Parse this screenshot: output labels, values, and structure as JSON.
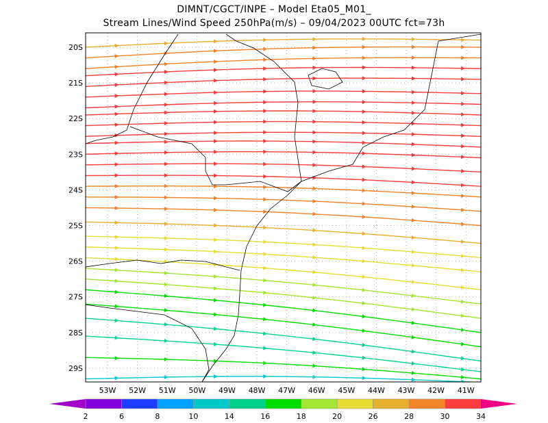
{
  "header": {
    "title_line1": "DIMNT/CGCT/INPE –  Model Eta05_M01_",
    "title_line2": "Stream Lines/Wind Speed 250hPa(m/s) –  09/04/2023 00UTC fct=73h"
  },
  "map_data": {
    "lon_range": [
      -53.75,
      -40.5
    ],
    "lat_range": [
      -19.6,
      -29.4
    ],
    "lon_labels": [
      {
        "v": -53,
        "t": "53W"
      },
      {
        "v": -52,
        "t": "52W"
      },
      {
        "v": -51,
        "t": "51W"
      },
      {
        "v": -50,
        "t": "50W"
      },
      {
        "v": -49,
        "t": "49W"
      },
      {
        "v": -48,
        "t": "48W"
      },
      {
        "v": -47,
        "t": "47W"
      },
      {
        "v": -46,
        "t": "46W"
      },
      {
        "v": -45,
        "t": "45W"
      },
      {
        "v": -44,
        "t": "44W"
      },
      {
        "v": -43,
        "t": "43W"
      },
      {
        "v": -42,
        "t": "42W"
      },
      {
        "v": -41,
        "t": "41W"
      }
    ],
    "lat_labels": [
      {
        "v": -20,
        "t": "20S"
      },
      {
        "v": -21,
        "t": "21S"
      },
      {
        "v": -22,
        "t": "22S"
      },
      {
        "v": -23,
        "t": "23S"
      },
      {
        "v": -24,
        "t": "24S"
      },
      {
        "v": -25,
        "t": "25S"
      },
      {
        "v": -26,
        "t": "26S"
      },
      {
        "v": -27,
        "t": "27S"
      },
      {
        "v": -28,
        "t": "28S"
      },
      {
        "v": -29,
        "t": "29S"
      }
    ],
    "streamlines": [
      [
        -20.0,
        -19.8,
        26
      ],
      [
        -20.3,
        -20.0,
        28
      ],
      [
        -20.6,
        -20.3,
        28
      ],
      [
        -20.8,
        -20.6,
        30
      ],
      [
        -21.1,
        -20.9,
        30
      ],
      [
        -21.4,
        -21.3,
        32
      ],
      [
        -21.7,
        -21.6,
        33
      ],
      [
        -21.9,
        -21.9,
        32
      ],
      [
        -22.2,
        -22.2,
        31
      ],
      [
        -22.5,
        -22.5,
        31
      ],
      [
        -22.7,
        -22.8,
        31
      ],
      [
        -23.0,
        -23.1,
        31
      ],
      [
        -23.3,
        -23.5,
        30
      ],
      [
        -23.6,
        -23.9,
        30
      ],
      [
        -23.9,
        -24.2,
        29
      ],
      [
        -24.2,
        -24.6,
        28
      ],
      [
        -24.5,
        -25.0,
        28
      ],
      [
        -24.9,
        -25.5,
        26
      ],
      [
        -25.3,
        -25.9,
        25
      ],
      [
        -25.6,
        -26.3,
        22
      ],
      [
        -25.9,
        -26.8,
        20
      ],
      [
        -26.2,
        -27.2,
        18
      ],
      [
        -26.5,
        -27.6,
        18
      ],
      [
        -26.8,
        -28.0,
        17
      ],
      [
        -27.2,
        -28.4,
        16
      ],
      [
        -27.6,
        -28.8,
        15
      ],
      [
        -28.1,
        -29.1,
        14
      ],
      [
        -28.7,
        -29.3,
        16
      ],
      [
        -29.3,
        -29.4,
        13
      ]
    ]
  },
  "colorbar": {
    "labels": [
      "2",
      "6",
      "8",
      "10",
      "14",
      "16",
      "18",
      "20",
      "26",
      "28",
      "30",
      "34"
    ],
    "colors": [
      "#a000c8",
      "#8200dc",
      "#1e3cff",
      "#00a0ff",
      "#00c8c8",
      "#00d28c",
      "#00dc00",
      "#a0e632",
      "#e6dc32",
      "#e6af2d",
      "#f08228",
      "#fa3c3c",
      "#f00082"
    ]
  }
}
